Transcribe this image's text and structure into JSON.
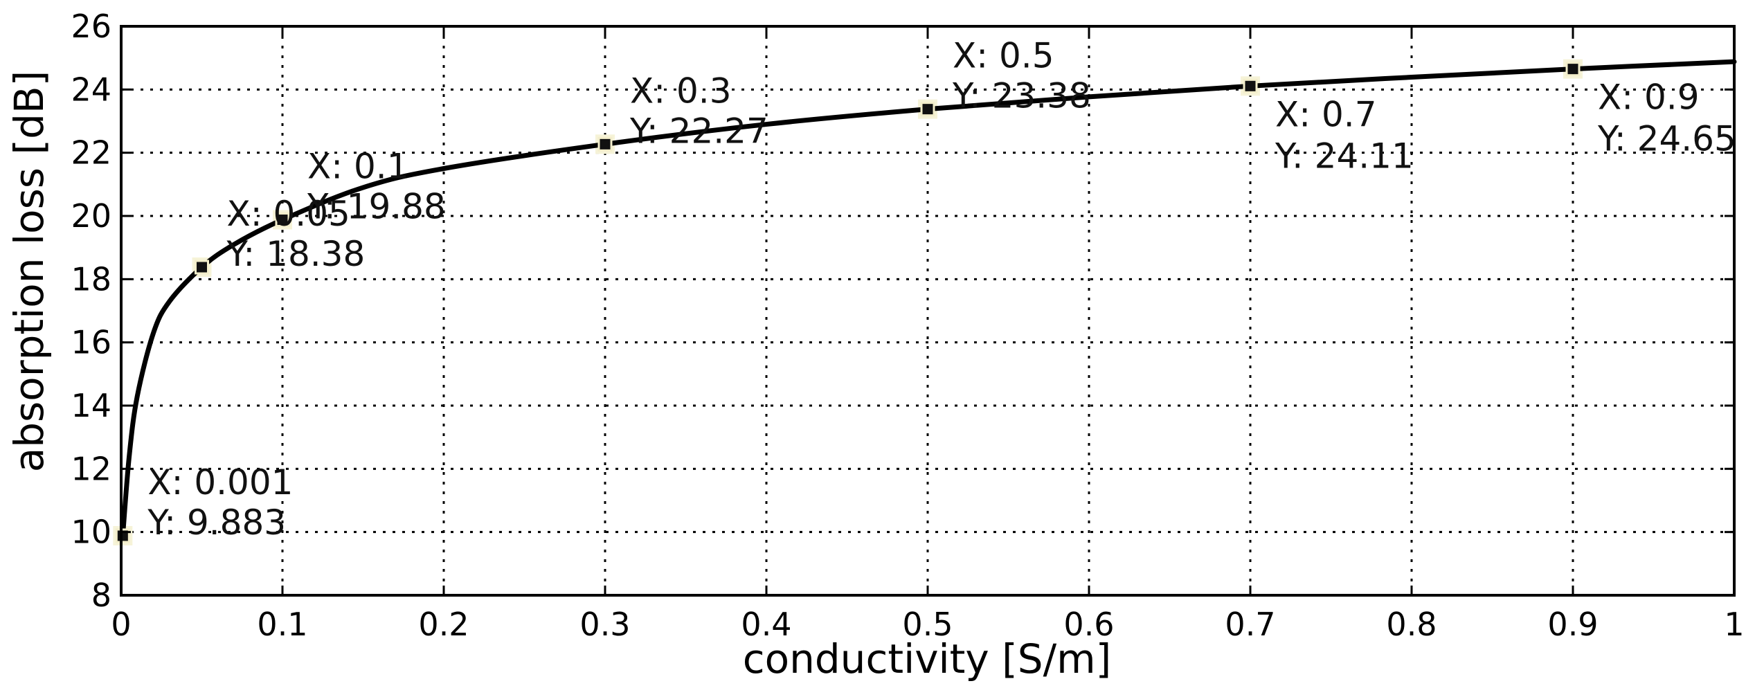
{
  "chart_data": {
    "type": "line",
    "title": "",
    "xlabel": "conductivity [S/m]",
    "ylabel": "absorption loss [dB]",
    "xlim": [
      0,
      1
    ],
    "ylim": [
      8,
      26
    ],
    "grid": true,
    "x_ticks": [
      "0",
      "0.1",
      "0.2",
      "0.3",
      "0.4",
      "0.5",
      "0.6",
      "0.7",
      "0.8",
      "0.9",
      "1"
    ],
    "y_ticks": [
      "8",
      "10",
      "12",
      "14",
      "16",
      "18",
      "20",
      "22",
      "24",
      "26"
    ],
    "series": [
      {
        "color": "#000000",
        "x": [
          0.001,
          0.005,
          0.01,
          0.02,
          0.03,
          0.05,
          0.07,
          0.1,
          0.15,
          0.2,
          0.3,
          0.4,
          0.5,
          0.6,
          0.7,
          0.8,
          0.9,
          1.0
        ],
        "y": [
          9.883,
          12.4,
          14.3,
          16.3,
          17.3,
          18.38,
          19.1,
          19.88,
          20.9,
          21.5,
          22.27,
          22.9,
          23.38,
          23.77,
          24.11,
          24.39,
          24.65,
          24.88
        ]
      }
    ],
    "datatips": [
      {
        "x": 0.001,
        "y": 9.883,
        "x_text": "X: 0.001",
        "y_text": "Y: 9.883",
        "side": "right-above"
      },
      {
        "x": 0.05,
        "y": 18.38,
        "x_text": "X: 0.05",
        "y_text": "Y: 18.38",
        "side": "right-above"
      },
      {
        "x": 0.1,
        "y": 19.88,
        "x_text": "X: 0.1",
        "y_text": "Y: 19.88",
        "side": "right-above"
      },
      {
        "x": 0.3,
        "y": 22.27,
        "x_text": "X: 0.3",
        "y_text": "Y: 22.27",
        "side": "right-above"
      },
      {
        "x": 0.5,
        "y": 23.38,
        "x_text": "X: 0.5",
        "y_text": "Y: 23.38",
        "side": "right-above"
      },
      {
        "x": 0.7,
        "y": 24.11,
        "x_text": "X: 0.7",
        "y_text": "Y: 24.11",
        "side": "right-below"
      },
      {
        "x": 0.9,
        "y": 24.65,
        "x_text": "X: 0.9",
        "y_text": "Y: 24.65",
        "side": "right-below"
      }
    ]
  }
}
